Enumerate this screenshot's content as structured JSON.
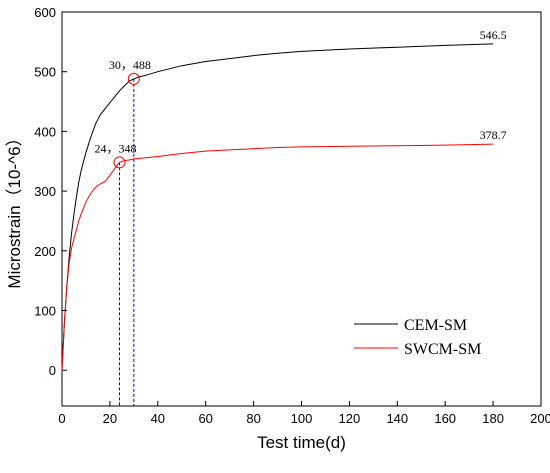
{
  "chart_data": {
    "type": "line",
    "title": "",
    "xlabel": "Test time(d)",
    "ylabel": "Microstrain（10-^6）",
    "xlim": [
      0,
      200
    ],
    "ylim": [
      -60,
      600
    ],
    "x_ticks": [
      0,
      20,
      40,
      60,
      80,
      100,
      120,
      140,
      160,
      180,
      200
    ],
    "y_ticks": [
      0,
      100,
      200,
      300,
      400,
      500,
      600
    ],
    "grid": false,
    "legend": "bottom-right",
    "series": [
      {
        "name": "CEM-SM",
        "color": "#000000",
        "x": [
          0,
          0.5,
          1,
          2,
          3,
          4,
          5,
          6,
          7,
          8,
          10,
          12,
          14,
          16,
          18,
          20,
          22,
          24,
          26,
          28,
          30,
          32,
          35,
          40,
          50,
          60,
          70,
          80,
          90,
          100,
          120,
          140,
          160,
          180
        ],
        "values": [
          0,
          40,
          80,
          140,
          190,
          230,
          262,
          290,
          315,
          335,
          365,
          390,
          412,
          428,
          438,
          448,
          458,
          468,
          476,
          484,
          488,
          491,
          494,
          500,
          510,
          517,
          522,
          527,
          531,
          534,
          538,
          541,
          544,
          546.5
        ]
      },
      {
        "name": "SWCM-SM",
        "color": "#ff0000",
        "x": [
          0,
          0.5,
          1,
          2,
          3,
          4,
          5,
          6,
          7,
          8,
          10,
          12,
          14,
          16,
          18,
          20,
          22,
          24,
          26,
          28,
          30,
          35,
          40,
          50,
          60,
          70,
          80,
          90,
          100,
          120,
          140,
          160,
          180
        ],
        "values": [
          0,
          40,
          80,
          140,
          180,
          205,
          220,
          235,
          250,
          262,
          282,
          296,
          306,
          312,
          316,
          326,
          338,
          348,
          351,
          352,
          354,
          356,
          358,
          363,
          367,
          369,
          371,
          373,
          374,
          375,
          376,
          377,
          378.7
        ]
      }
    ],
    "annotations": [
      {
        "series": "CEM-SM",
        "x": 30,
        "y": 488,
        "text": "30，488",
        "color": "#ff0000"
      },
      {
        "series": "SWCM-SM",
        "x": 24,
        "y": 348,
        "text": "24，348",
        "color": "#ff0000"
      },
      {
        "series": "CEM-SM",
        "x": 180,
        "y": 546.5,
        "text": "546.5"
      },
      {
        "series": "SWCM-SM",
        "x": 180,
        "y": 378.7,
        "text": "378.7"
      }
    ],
    "guide_line_color": "#0000cc"
  }
}
